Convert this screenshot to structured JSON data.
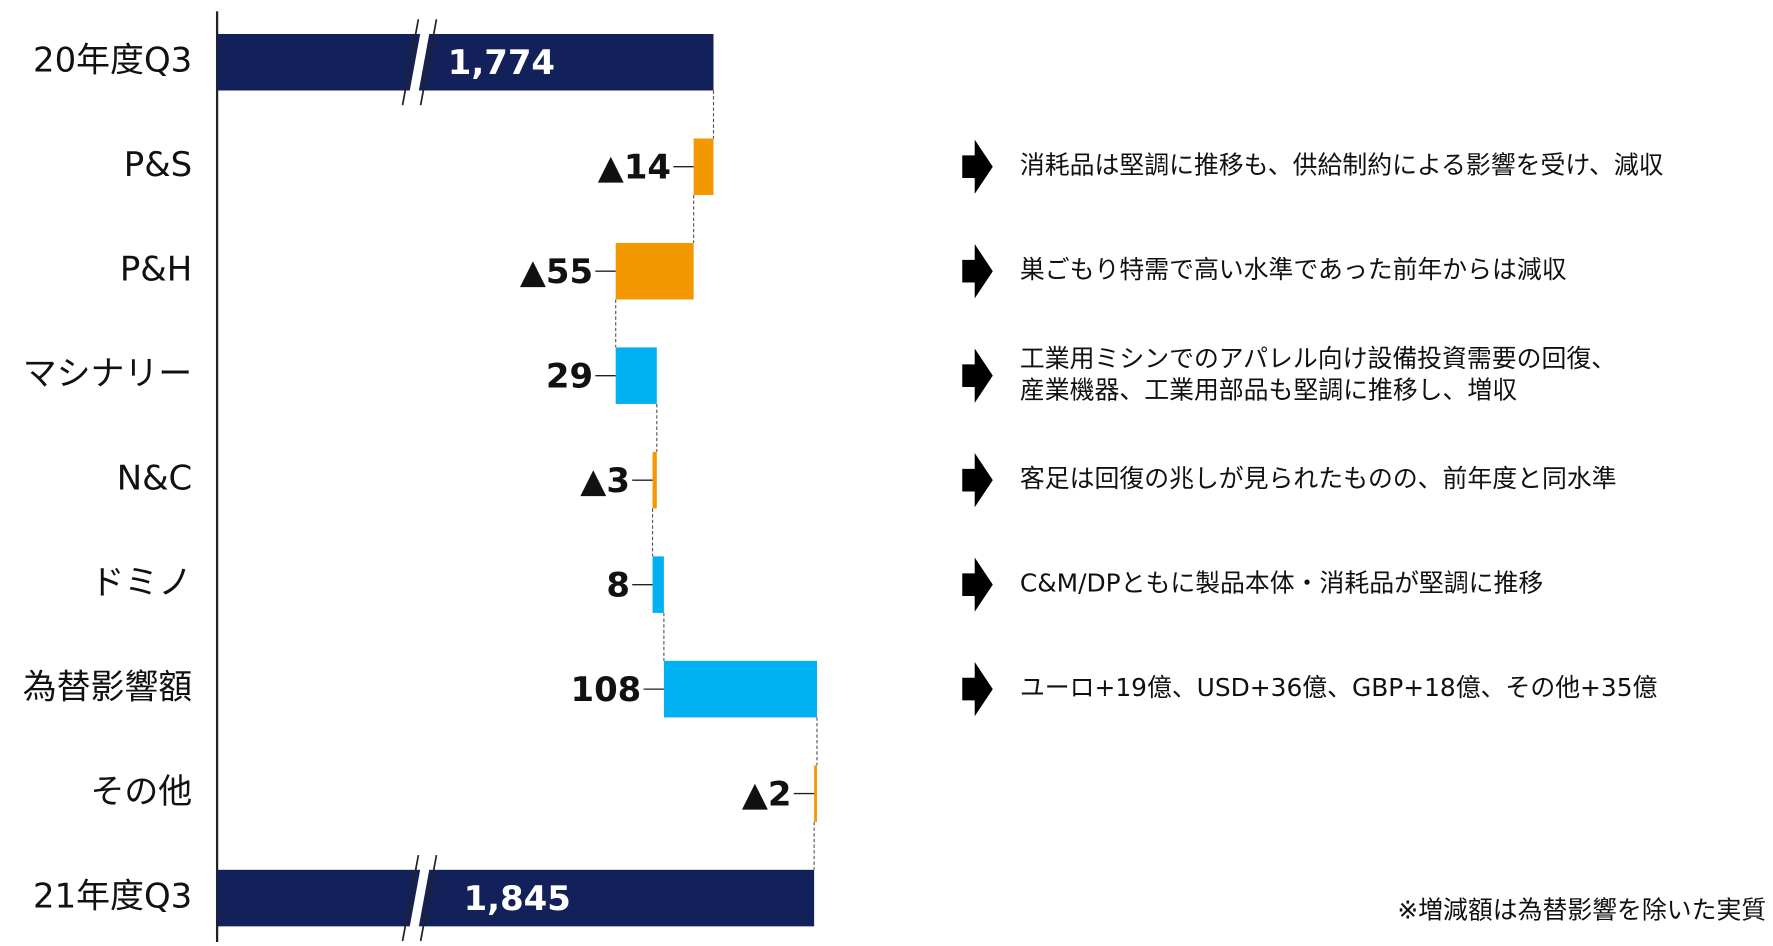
{
  "chart_data": {
    "type": "waterfall",
    "categories": [
      "20年度Q3",
      "P&S",
      "P&H",
      "マシナリー",
      "N&C",
      "ドミノ",
      "為替影響額",
      "その他",
      "21年度Q3"
    ],
    "values": [
      1774,
      -14,
      -55,
      29,
      -3,
      8,
      108,
      -2,
      1845
    ],
    "value_labels": [
      "1,774",
      "▲14",
      "▲55",
      "29",
      "▲3",
      "8",
      "108",
      "▲2",
      "1,845"
    ],
    "total_color": "#13215a",
    "increase_color": "#00b0f0",
    "decrease_color": "#f39800",
    "annotations": [
      null,
      [
        "消耗品は堅調に推移も、供給制約による影響を受け、減収"
      ],
      [
        "巣ごもり特需で高い水準であった前年からは減収"
      ],
      [
        "工業用ミシンでのアパレル向け設備投資需要の回復、",
        "産業機器、工業用部品も堅調に推移し、増収"
      ],
      [
        "客足は回復の兆しが見られたものの、前年度と同水準"
      ],
      [
        "C&M/DPともに製品本体・消耗品が堅調に推移"
      ],
      [
        "ユーロ+19億、USD+36億、GBP+18億、その他+35億"
      ],
      null,
      null
    ],
    "footnote": "※増減額は為替影響を除いた実質"
  }
}
